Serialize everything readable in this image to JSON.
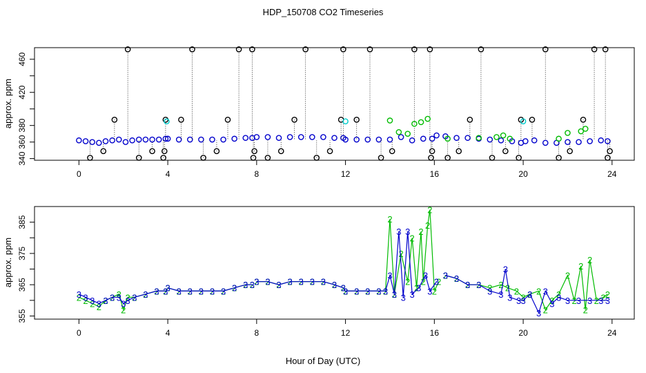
{
  "chart_data": {
    "type": "scatter",
    "title": "HDP_150708  CO2 Timeseries",
    "xlabel": "Hour of Day (UTC)",
    "colors": {
      "black": "#000000",
      "blue": "#0000cc",
      "green": "#00bb00",
      "cyan": "#00cccc"
    },
    "panels": [
      {
        "name": "top",
        "ylabel": "approx. ppm",
        "xlim": [
          -2,
          25
        ],
        "ylim": [
          338,
          474
        ],
        "xticks": [
          0,
          4,
          8,
          12,
          16,
          20,
          24
        ],
        "yticks": [
          340,
          360,
          380,
          400,
          420,
          440,
          460
        ],
        "ytick_labels": [
          "340",
          "360",
          "380",
          "420",
          "460"
        ],
        "ytick_labeled_values": [
          340,
          360,
          380,
          420,
          460
        ],
        "series": [
          {
            "name": "blue baseline",
            "color": "#0000cc",
            "marker": "o",
            "segments": [
              {
                "x": [
                  0.0,
                  0.3,
                  0.6,
                  0.9,
                  1.2,
                  1.5,
                  1.8,
                  2.1,
                  2.4,
                  2.7,
                  3.0,
                  3.3,
                  3.6,
                  3.9
                ],
                "y": [
                  362,
                  361,
                  360,
                  359,
                  361,
                  362,
                  363,
                  360,
                  362,
                  363,
                  363,
                  363,
                  363,
                  364
                ]
              },
              {
                "x": [
                  4.0,
                  4.5,
                  5.0,
                  5.5,
                  6.0,
                  6.5,
                  7.0,
                  7.5,
                  7.8
                ],
                "y": [
                  364,
                  363,
                  363,
                  363,
                  363,
                  363,
                  364,
                  365,
                  365
                ]
              },
              {
                "x": [
                  8.0,
                  8.5,
                  9.0,
                  9.5,
                  10.0,
                  10.5,
                  11.0,
                  11.5,
                  11.9
                ],
                "y": [
                  366,
                  366,
                  365,
                  366,
                  366,
                  366,
                  366,
                  365,
                  365
                ]
              },
              {
                "x": [
                  12.0,
                  12.5,
                  13.0,
                  13.5,
                  14.0,
                  14.5,
                  15.0,
                  15.5,
                  15.9
                ],
                "y": [
                  363,
                  363,
                  363,
                  363,
                  363,
                  366,
                  362,
                  364,
                  364
                ]
              },
              {
                "x": [
                  16.1,
                  16.5,
                  17.0,
                  17.5,
                  18.0,
                  18.5,
                  19.0,
                  19.5,
                  19.9
                ],
                "y": [
                  368,
                  367,
                  365,
                  365,
                  364,
                  363,
                  362,
                  361,
                  359
                ]
              },
              {
                "x": [
                  20.1,
                  20.5,
                  21.0,
                  21.5,
                  22.0,
                  22.5,
                  23.0,
                  23.5,
                  23.8
                ],
                "y": [
                  361,
                  362,
                  359,
                  359,
                  360,
                  360,
                  361,
                  362,
                  361
                ]
              }
            ]
          },
          {
            "name": "black outliers",
            "color": "#000000",
            "marker": "o",
            "x": [
              0.5,
              1.1,
              1.6,
              2.2,
              2.7,
              3.3,
              3.8,
              3.85,
              3.9,
              4.6,
              5.1,
              5.6,
              6.2,
              6.7,
              7.2,
              7.8,
              7.85,
              7.9,
              8.5,
              9.1,
              9.7,
              10.2,
              10.7,
              11.3,
              11.8,
              11.9,
              12.5,
              13.1,
              13.6,
              14.1,
              15.1,
              15.8,
              15.85,
              15.9,
              16.6,
              17.1,
              17.6,
              18.1,
              18.6,
              19.2,
              19.8,
              19.9,
              20.4,
              21.0,
              21.6,
              22.1,
              22.7,
              23.2,
              23.7,
              23.8,
              23.9
            ],
            "y": [
              341,
              349,
              387,
              472,
              341,
              349,
              341,
              349,
              387,
              387,
              472,
              341,
              349,
              387,
              472,
              472,
              341,
              349,
              341,
              349,
              387,
              472,
              341,
              349,
              387,
              472,
              387,
              472,
              341,
              349,
              472,
              472,
              341,
              349,
              341,
              349,
              387,
              472,
              341,
              349,
              341,
              387,
              387,
              472,
              341,
              349,
              387,
              472,
              472,
              341,
              349
            ]
          },
          {
            "name": "green",
            "color": "#00bb00",
            "marker": "o",
            "x": [
              14.0,
              14.4,
              14.8,
              15.1,
              15.4,
              15.7,
              16.6,
              18.0,
              18.8,
              19.1,
              19.4,
              21.6,
              22.0,
              22.6,
              22.8
            ],
            "y": [
              386,
              372,
              370,
              382,
              384,
              388,
              364,
              365,
              366,
              368,
              364,
              364,
              371,
              373,
              376
            ]
          },
          {
            "name": "cyan",
            "color": "#00cccc",
            "marker": "o",
            "x": [
              3.95,
              12.0,
              20.0
            ],
            "y": [
              385,
              385,
              385
            ]
          }
        ]
      },
      {
        "name": "bottom",
        "ylabel": "approx. ppm",
        "xlim": [
          -2,
          25
        ],
        "ylim": [
          354,
          390
        ],
        "xticks": [
          0,
          4,
          8,
          12,
          16,
          20,
          24
        ],
        "yticks": [
          355,
          360,
          365,
          370,
          375,
          380,
          385
        ],
        "ytick_labels": [
          "355",
          "365",
          "375",
          "385"
        ],
        "ytick_labeled_values": [
          355,
          365,
          375,
          385
        ],
        "series": [
          {
            "name": "green (2)",
            "color": "#00bb00",
            "marker": "2",
            "segments": [
              {
                "x": [
                  0.0,
                  0.3,
                  0.6,
                  0.9,
                  1.2,
                  1.5,
                  1.8,
                  2.0,
                  2.2,
                  2.5,
                  3.0,
                  3.5,
                  3.9
                ],
                "y": [
                  361,
                  360,
                  359,
                  358,
                  360,
                  361,
                  362,
                  357,
                  361,
                  361,
                  362,
                  363,
                  363
                ]
              },
              {
                "x": [
                  4.0,
                  4.5,
                  5.0,
                  5.5,
                  6.0,
                  6.5,
                  7.0,
                  7.5,
                  7.8
                ],
                "y": [
                  364,
                  363,
                  363,
                  363,
                  363,
                  363,
                  364,
                  365,
                  365
                ]
              },
              {
                "x": [
                  8.0,
                  8.5,
                  9.0,
                  9.5,
                  10.0,
                  10.5,
                  11.0,
                  11.5,
                  11.9
                ],
                "y": [
                  366,
                  366,
                  365,
                  366,
                  366,
                  366,
                  366,
                  365,
                  364
                ]
              },
              {
                "x": [
                  12.0,
                  12.5,
                  13.0,
                  13.5,
                  13.8,
                  14.0,
                  14.2,
                  14.5,
                  14.8,
                  15.0,
                  15.2,
                  15.4,
                  15.5,
                  15.7,
                  15.8,
                  16.0,
                  16.2
                ],
                "y": [
                  363,
                  363,
                  363,
                  363,
                  363,
                  386,
                  362,
                  375,
                  366,
                  380,
                  364,
                  382,
                  366,
                  384,
                  389,
                  363,
                  366
                ]
              },
              {
                "x": [
                  16.5,
                  17.0,
                  17.5,
                  18.0,
                  18.5,
                  19.0,
                  19.3,
                  19.7,
                  20.0,
                  20.3,
                  20.7,
                  21.0,
                  21.3,
                  21.6,
                  22.0,
                  22.3,
                  22.6,
                  22.8,
                  23.0,
                  23.3,
                  23.6,
                  23.8
                ],
                "y": [
                  368,
                  367,
                  365,
                  365,
                  364,
                  365,
                  364,
                  363,
                  361,
                  362,
                  363,
                  357,
                  360,
                  362,
                  368,
                  360,
                  371,
                  357,
                  373,
                  360,
                  361,
                  362
                ]
              }
            ]
          },
          {
            "name": "blue (3)",
            "color": "#0000cc",
            "marker": "3",
            "segments": [
              {
                "x": [
                  0.0,
                  0.3,
                  0.6,
                  0.9,
                  1.2,
                  1.5,
                  1.8,
                  2.0,
                  2.2,
                  2.5,
                  3.0,
                  3.5,
                  3.9
                ],
                "y": [
                  362,
                  361,
                  360,
                  359,
                  360,
                  361,
                  361,
                  359,
                  360,
                  361,
                  362,
                  363,
                  363
                ]
              },
              {
                "x": [
                  4.0,
                  4.5,
                  5.0,
                  5.5,
                  6.0,
                  6.5,
                  7.0,
                  7.5,
                  7.8
                ],
                "y": [
                  364,
                  363,
                  363,
                  363,
                  363,
                  363,
                  364,
                  365,
                  365
                ]
              },
              {
                "x": [
                  8.0,
                  8.5,
                  9.0,
                  9.5,
                  10.0,
                  10.5,
                  11.0,
                  11.5,
                  11.9
                ],
                "y": [
                  366,
                  366,
                  365,
                  366,
                  366,
                  366,
                  366,
                  365,
                  364
                ]
              },
              {
                "x": [
                  12.0,
                  12.5,
                  13.0,
                  13.5,
                  13.8,
                  14.0,
                  14.2,
                  14.4,
                  14.6,
                  14.8,
                  15.0,
                  15.3,
                  15.6,
                  15.8,
                  16.1
                ],
                "y": [
                  363,
                  363,
                  363,
                  363,
                  363,
                  368,
                  362,
                  382,
                  361,
                  382,
                  362,
                  364,
                  368,
                  363,
                  366
                ]
              },
              {
                "x": [
                  16.5,
                  17.0,
                  17.5,
                  18.0,
                  18.5,
                  19.0,
                  19.2,
                  19.4,
                  19.8,
                  20.0,
                  20.3,
                  20.7,
                  21.0,
                  21.3,
                  21.6,
                  22.0,
                  22.5,
                  23.0,
                  23.5,
                  23.8
                ],
                "y": [
                  368,
                  367,
                  365,
                  365,
                  363,
                  362,
                  370,
                  361,
                  360,
                  360,
                  362,
                  356,
                  363,
                  359,
                  361,
                  360,
                  360,
                  360,
                  360,
                  360
                ]
              }
            ]
          }
        ]
      }
    ],
    "tick_labels_x": [
      "0",
      "4",
      "8",
      "12",
      "16",
      "20",
      "24"
    ]
  }
}
